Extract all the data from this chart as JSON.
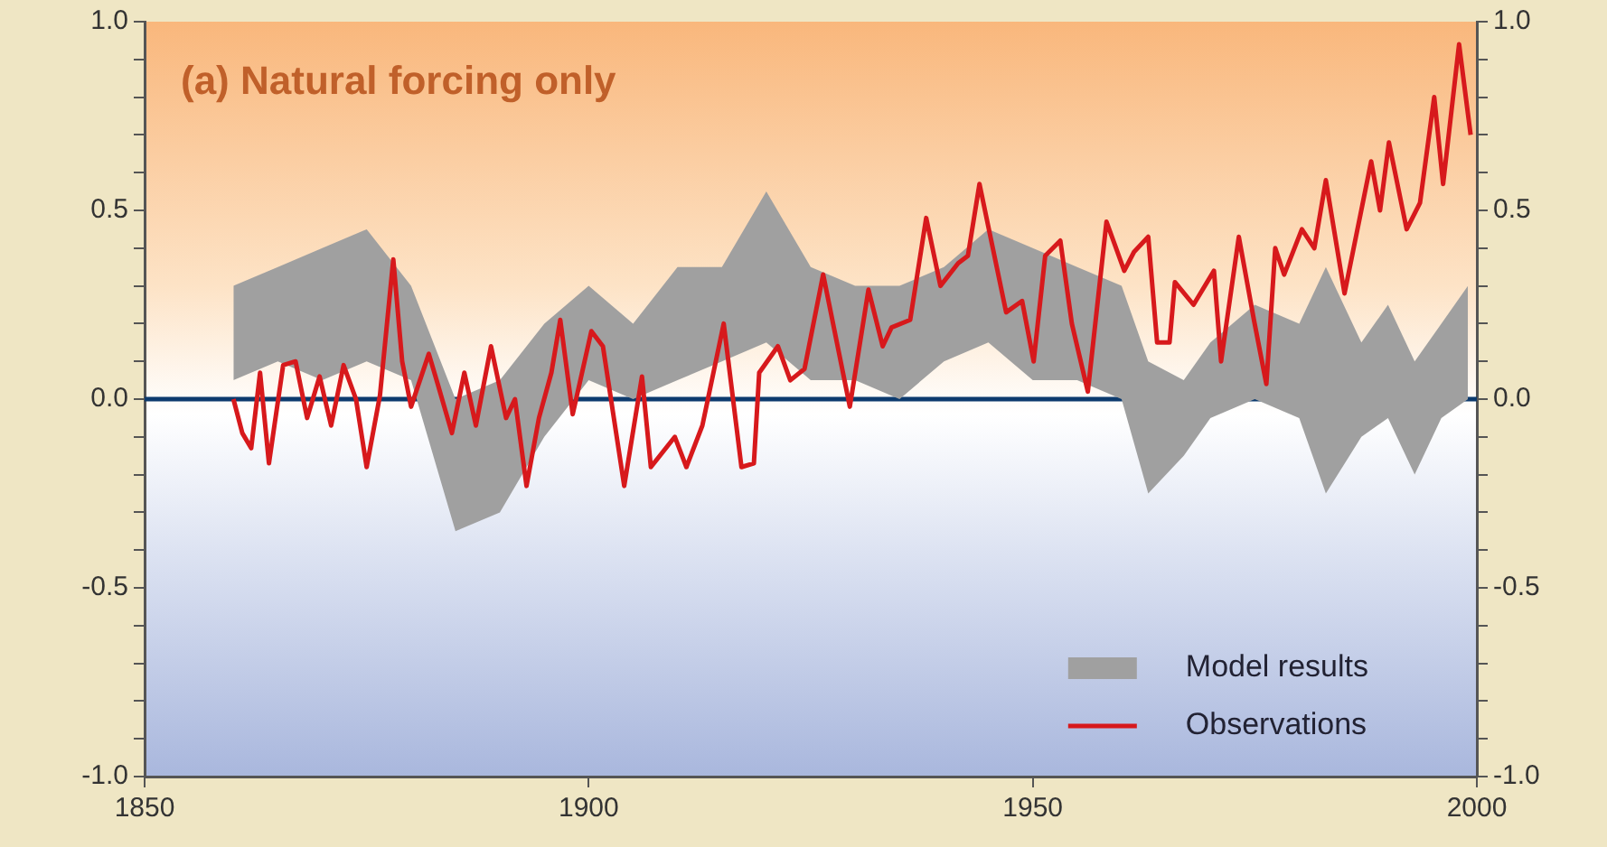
{
  "chart_data": {
    "type": "line",
    "title": "(a) Natural forcing only",
    "xlim": [
      1850,
      2000
    ],
    "xticks": [
      1850,
      1900,
      1950,
      2000
    ],
    "ylim": [
      -1,
      1
    ],
    "yticks": [
      {
        "value": -1,
        "label": "-1.0"
      },
      {
        "value": -0.9,
        "label": null
      },
      {
        "value": -0.8,
        "label": null
      },
      {
        "value": -0.7,
        "label": null
      },
      {
        "value": -0.6,
        "label": null
      },
      {
        "value": -0.5,
        "label": "-0.5"
      },
      {
        "value": -0.4,
        "label": null
      },
      {
        "value": -0.3,
        "label": null
      },
      {
        "value": -0.2,
        "label": null
      },
      {
        "value": -0.1,
        "label": null
      },
      {
        "value": 0,
        "label": "0.0"
      },
      {
        "value": 0.1,
        "label": null
      },
      {
        "value": 0.2,
        "label": null
      },
      {
        "value": 0.3,
        "label": null
      },
      {
        "value": 0.4,
        "label": null
      },
      {
        "value": 0.5,
        "label": "0.5"
      },
      {
        "value": 0.6,
        "label": null
      },
      {
        "value": 0.7,
        "label": null
      },
      {
        "value": 0.8,
        "label": null
      },
      {
        "value": 0.9,
        "label": null
      },
      {
        "value": 1,
        "label": "1.0"
      }
    ],
    "y2lim": [
      -1,
      1
    ],
    "y2ticks": [
      {
        "value": -1,
        "label": "-1.0"
      },
      {
        "value": -0.9,
        "label": null
      },
      {
        "value": -0.8,
        "label": null
      },
      {
        "value": -0.7,
        "label": null
      },
      {
        "value": -0.6,
        "label": null
      },
      {
        "value": -0.5,
        "label": "-0.5"
      },
      {
        "value": -0.4,
        "label": null
      },
      {
        "value": -0.3,
        "label": null
      },
      {
        "value": -0.2,
        "label": null
      },
      {
        "value": -0.1,
        "label": null
      },
      {
        "value": 0,
        "label": "0.0"
      },
      {
        "value": 0.1,
        "label": null
      },
      {
        "value": 0.2,
        "label": null
      },
      {
        "value": 0.3,
        "label": null
      },
      {
        "value": 0.4,
        "label": null
      },
      {
        "value": 0.5,
        "label": "0.5"
      },
      {
        "value": 0.6,
        "label": null
      },
      {
        "value": 0.7,
        "label": null
      },
      {
        "value": 0.8,
        "label": null
      },
      {
        "value": 0.9,
        "label": null
      },
      {
        "value": 1,
        "label": "1.0"
      }
    ],
    "grid": false,
    "legend": "bottom right",
    "marker": "none",
    "line_style": "solid",
    "ref_lines": [
      {
        "axis": "y",
        "value": 0,
        "color": "#0d3b6e"
      }
    ],
    "series": [
      {
        "name": "Model results",
        "type": "area",
        "color": "#a0a0a0",
        "x": [
          1860,
          1865,
          1870,
          1875,
          1880,
          1885,
          1890,
          1895,
          1900,
          1905,
          1910,
          1915,
          1920,
          1925,
          1930,
          1935,
          1940,
          1945,
          1950,
          1955,
          1960,
          1963,
          1967,
          1970,
          1975,
          1980,
          1983,
          1987,
          1990,
          1993,
          1996,
          1999
        ],
        "values": [
          null,
          null,
          null,
          null,
          null,
          null,
          null,
          null,
          null,
          null,
          null,
          null,
          null,
          null,
          null,
          null,
          null,
          null,
          null,
          null,
          null,
          null,
          null,
          null,
          null,
          null,
          null,
          null,
          null,
          null,
          null,
          null
        ],
        "lower": [
          0.05,
          0.1,
          0.05,
          0.1,
          0.05,
          -0.35,
          -0.3,
          -0.1,
          0.05,
          0.0,
          0.05,
          0.1,
          0.15,
          0.05,
          0.05,
          0.0,
          0.1,
          0.15,
          0.05,
          0.05,
          0.0,
          -0.25,
          -0.15,
          -0.05,
          0.0,
          -0.05,
          -0.25,
          -0.1,
          -0.05,
          -0.2,
          -0.05,
          0.0
        ],
        "upper": [
          0.3,
          0.35,
          0.4,
          0.45,
          0.3,
          0.0,
          0.05,
          0.2,
          0.3,
          0.2,
          0.35,
          0.35,
          0.55,
          0.35,
          0.3,
          0.3,
          0.35,
          0.45,
          0.4,
          0.35,
          0.3,
          0.1,
          0.05,
          0.15,
          0.25,
          0.2,
          0.35,
          0.15,
          0.25,
          0.1,
          0.2,
          0.3
        ]
      },
      {
        "name": "Observations",
        "type": "line",
        "color": "#d7191c",
        "x": [
          1860,
          1861,
          1862,
          1863,
          1864,
          1865.6,
          1867,
          1868.3,
          1869.7,
          1871,
          1872.4,
          1873.8,
          1875,
          1876.5,
          1878,
          1879,
          1880,
          1882,
          1883,
          1884.6,
          1886,
          1887.3,
          1889,
          1890.7,
          1891.7,
          1893,
          1894.4,
          1895.8,
          1896.8,
          1898.2,
          1900.3,
          1901.6,
          1904,
          1906,
          1907,
          1909.7,
          1911,
          1912.8,
          1915.2,
          1917.2,
          1918.6,
          1919.2,
          1921.3,
          1922.7,
          1924.3,
          1926.4,
          1929.4,
          1931.5,
          1933.1,
          1934.1,
          1936.2,
          1938,
          1939.6,
          1941.6,
          1942.7,
          1944,
          1947,
          1948.8,
          1950.1,
          1951.4,
          1953.1,
          1954.4,
          1956.2,
          1958.3,
          1960.3,
          1961.4,
          1963,
          1964,
          1965.4,
          1966,
          1968.1,
          1970.4,
          1971.2,
          1973.2,
          1974.9,
          1976.3,
          1977.3,
          1978.3,
          1980.3,
          1981.7,
          1983,
          1985.1,
          1986.9,
          1988.1,
          1989.1,
          1990.1,
          1992.1,
          1993.6,
          1995.2,
          1996.2,
          1998,
          1999.3
        ],
        "values": [
          0.0,
          -0.09,
          -0.13,
          0.07,
          -0.17,
          0.09,
          0.1,
          -0.05,
          0.06,
          -0.07,
          0.09,
          0.0,
          -0.18,
          0.01,
          0.37,
          0.1,
          -0.02,
          0.12,
          0.04,
          -0.09,
          0.07,
          -0.07,
          0.14,
          -0.05,
          0.0,
          -0.23,
          -0.05,
          0.07,
          0.21,
          -0.04,
          0.18,
          0.14,
          -0.23,
          0.06,
          -0.18,
          -0.1,
          -0.18,
          -0.07,
          0.2,
          -0.18,
          -0.17,
          0.07,
          0.14,
          0.05,
          0.08,
          0.33,
          -0.02,
          0.29,
          0.14,
          0.19,
          0.21,
          0.48,
          0.3,
          0.36,
          0.38,
          0.57,
          0.23,
          0.26,
          0.1,
          0.38,
          0.42,
          0.2,
          0.02,
          0.47,
          0.34,
          0.39,
          0.43,
          0.15,
          0.15,
          0.31,
          0.25,
          0.34,
          0.1,
          0.43,
          0.21,
          0.04,
          0.4,
          0.33,
          0.45,
          0.4,
          0.58,
          0.28,
          0.49,
          0.63,
          0.5,
          0.68,
          0.45,
          0.52,
          0.8,
          0.57,
          0.94,
          0.7
        ]
      }
    ]
  }
}
